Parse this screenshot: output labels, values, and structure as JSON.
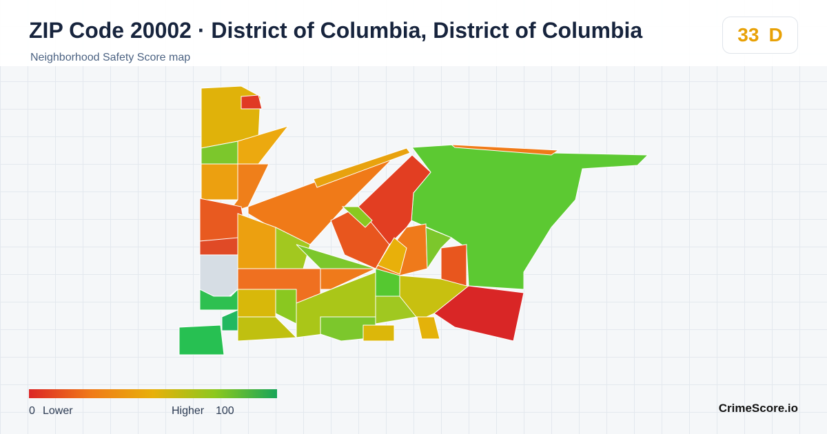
{
  "header": {
    "title": "ZIP Code 20002 · District of Columbia, District of Columbia",
    "subtitle": "Neighborhood Safety Score map",
    "score": 33,
    "grade": "D"
  },
  "legend": {
    "min": 0,
    "min_label": "Lower",
    "max_label": "Higher",
    "max": 100
  },
  "brand": "CrimeScore.io"
}
